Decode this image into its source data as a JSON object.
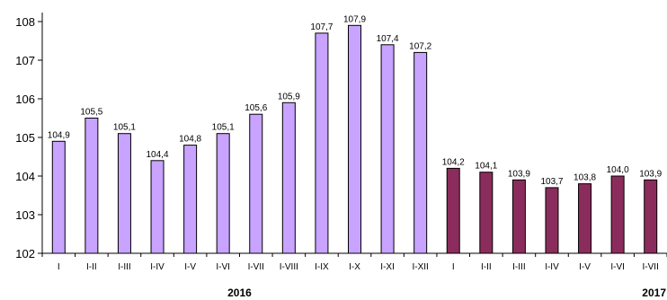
{
  "chart_data": {
    "type": "bar",
    "categories": [
      "I",
      "I-II",
      "I-III",
      "I-IV",
      "I-V",
      "I-VI",
      "I-VII",
      "I-VIII",
      "I-IX",
      "I-X",
      "I-XI",
      "I-XII",
      "I",
      "I-II",
      "I-III",
      "I-IV",
      "I-V",
      "I-VI",
      "I-VII"
    ],
    "values": [
      104.9,
      105.5,
      105.1,
      104.4,
      104.8,
      105.1,
      105.6,
      105.9,
      107.7,
      107.9,
      107.4,
      107.2,
      104.2,
      104.1,
      103.9,
      103.7,
      103.8,
      104.0,
      103.9
    ],
    "data_labels": [
      "104,9",
      "105,5",
      "105,1",
      "104,4",
      "104,8",
      "105,1",
      "105,6",
      "105,9",
      "107,7",
      "107,9",
      "107,4",
      "107,2",
      "104,2",
      "104,1",
      "103,9",
      "103,7",
      "103,8",
      "104,0",
      "103,9"
    ],
    "groups": [
      {
        "label": "2016",
        "start": 0,
        "end": 11,
        "color": "#C8A3FF"
      },
      {
        "label": "2017",
        "start": 12,
        "end": 18,
        "color": "#8B2D5C"
      }
    ],
    "ylim": [
      102,
      108
    ],
    "yticks": [
      102,
      103,
      104,
      105,
      106,
      107,
      108
    ],
    "title": "",
    "xlabel": "",
    "ylabel": "",
    "grid": false,
    "legend": "none"
  }
}
